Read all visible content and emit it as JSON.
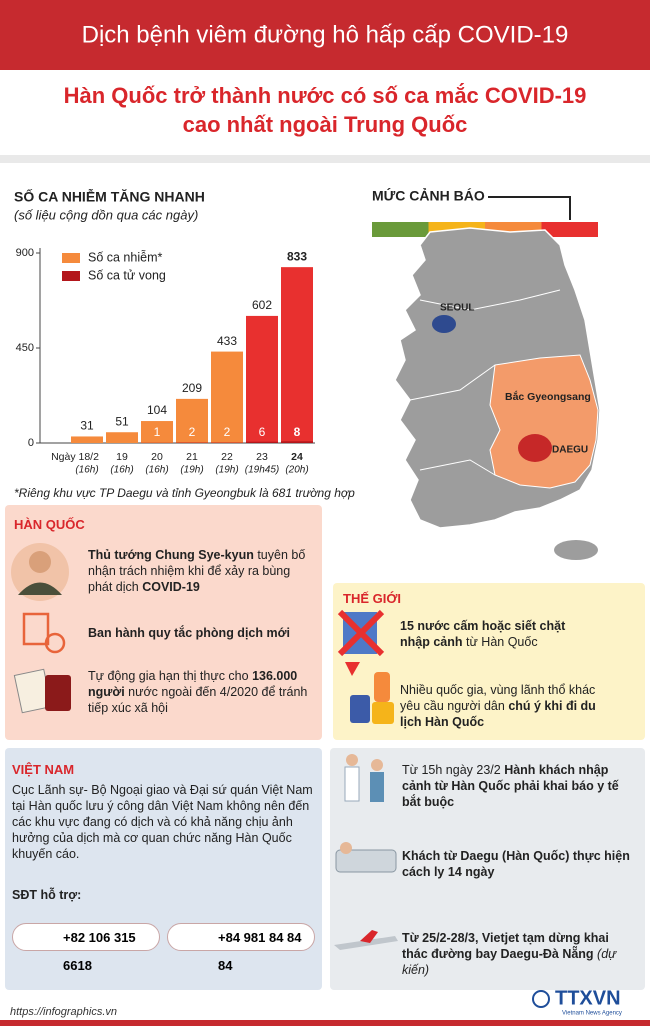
{
  "header": {
    "title": "Dịch bệnh viêm đường hô hấp cấp COVID-19",
    "headline": [
      "Hàn Quốc trở thành nước có số ca mắc COVID-19",
      "cao nhất ngoài Trung Quốc"
    ]
  },
  "chart_data": {
    "type": "bar",
    "title": "SỐ CA NHIỄM TĂNG NHANH",
    "subtitle": "(số liệu cộng dồn qua các ngày)",
    "categories": [
      "Ngày 18/2",
      "19",
      "20",
      "21",
      "22",
      "23",
      "24"
    ],
    "times": [
      "(16h)",
      "(16h)",
      "(16h)",
      "(19h)",
      "(19h)",
      "(19h45)",
      "(20h)"
    ],
    "series": [
      {
        "name": "Số ca nhiễm*",
        "color": "#f58a3c",
        "colors": [
          "#f58a3c",
          "#f58a3c",
          "#f58a3c",
          "#f58a3c",
          "#f58a3c",
          "#e8302f",
          "#e8302f"
        ],
        "values": [
          31,
          51,
          104,
          209,
          433,
          602,
          833
        ]
      },
      {
        "name": "Số ca tử vong",
        "color": "#b3161b",
        "values": [
          null,
          null,
          1,
          2,
          2,
          6,
          8
        ]
      }
    ],
    "ylim": [
      0,
      900
    ],
    "yticks": [
      0,
      450,
      900
    ],
    "note": "*Riêng khu vực TP Daegu và tỉnh Gyeongbuk là 681 trường hợp"
  },
  "warning": {
    "title": "MỨC CẢNH BÁO",
    "colors": [
      "#6a9a3a",
      "#f5b41a",
      "#f58a3c",
      "#e8302f"
    ]
  },
  "map": {
    "labels": [
      "SEOUL",
      "Bắc Gyeongsang",
      "DAEGU"
    ]
  },
  "korea": {
    "title": "HÀN QUỐC",
    "items": [
      [
        {
          "text": "Thủ tướng Chung Sye-kyun",
          "bold": true
        },
        {
          "text": " tuyên bố nhận trách nhiệm khi để xảy ra bùng phát dịch "
        },
        {
          "text": "COVID-19",
          "bold": true
        }
      ],
      [
        {
          "text": "Ban hành quy tắc phòng dịch mới",
          "bold": true
        }
      ],
      [
        {
          "text": "Tự động gia hạn thị thực cho "
        },
        {
          "text": "136.000 người",
          "bold": true
        },
        {
          "text": " nước ngoài đến 4/2020 để tránh tiếp xúc xã hội"
        }
      ]
    ]
  },
  "world": {
    "title": "THẾ GIỚI",
    "items": [
      [
        {
          "text": "15 nước cấm hoặc siết chặt nhập cảnh",
          "bold": true
        },
        {
          "text": " từ Hàn Quốc"
        }
      ],
      [
        {
          "text": "Nhiều quốc gia, vùng lãnh thổ khác yêu cầu người dân "
        },
        {
          "text": "chú ý khi đi du lịch Hàn Quốc",
          "bold": true
        }
      ]
    ]
  },
  "vietnam": {
    "title": "VIỆT NAM",
    "body": "Cục Lãnh sự- Bộ Ngoại giao và Đại sứ quán Việt Nam tại Hàn quốc lưu ý công dân Việt Nam không nên đến các khu vực đang có dịch và có khả năng chịu ảnh hưởng của dịch mà cơ quan chức năng Hàn Quốc khuyến cáo.",
    "phone_title": "SĐT hỗ trợ:",
    "phones": [
      "+82 106 315 6618",
      "+84 981 84 84 84"
    ]
  },
  "measures": [
    [
      {
        "text": "Từ 15h ngày 23/2 "
      },
      {
        "text": "Hành khách nhập cảnh từ Hàn Quốc phải khai báo y tế bắt buộc",
        "bold": true
      }
    ],
    [
      {
        "text": "Khách từ Daegu (Hàn Quốc) thực hiện cách ly 14 ngày",
        "bold": true
      }
    ],
    [
      {
        "text": "Từ 25/2-28/3, Vietjet tạm dừng khai thác đường bay Daegu-Đà Nẵng",
        "bold": true
      },
      {
        "text": " (dự kiến)",
        "italic": true
      }
    ]
  ],
  "footer": {
    "source": "https://infographics.vn",
    "logo": "TTXVN",
    "agency": "Vietnam News Agency"
  }
}
